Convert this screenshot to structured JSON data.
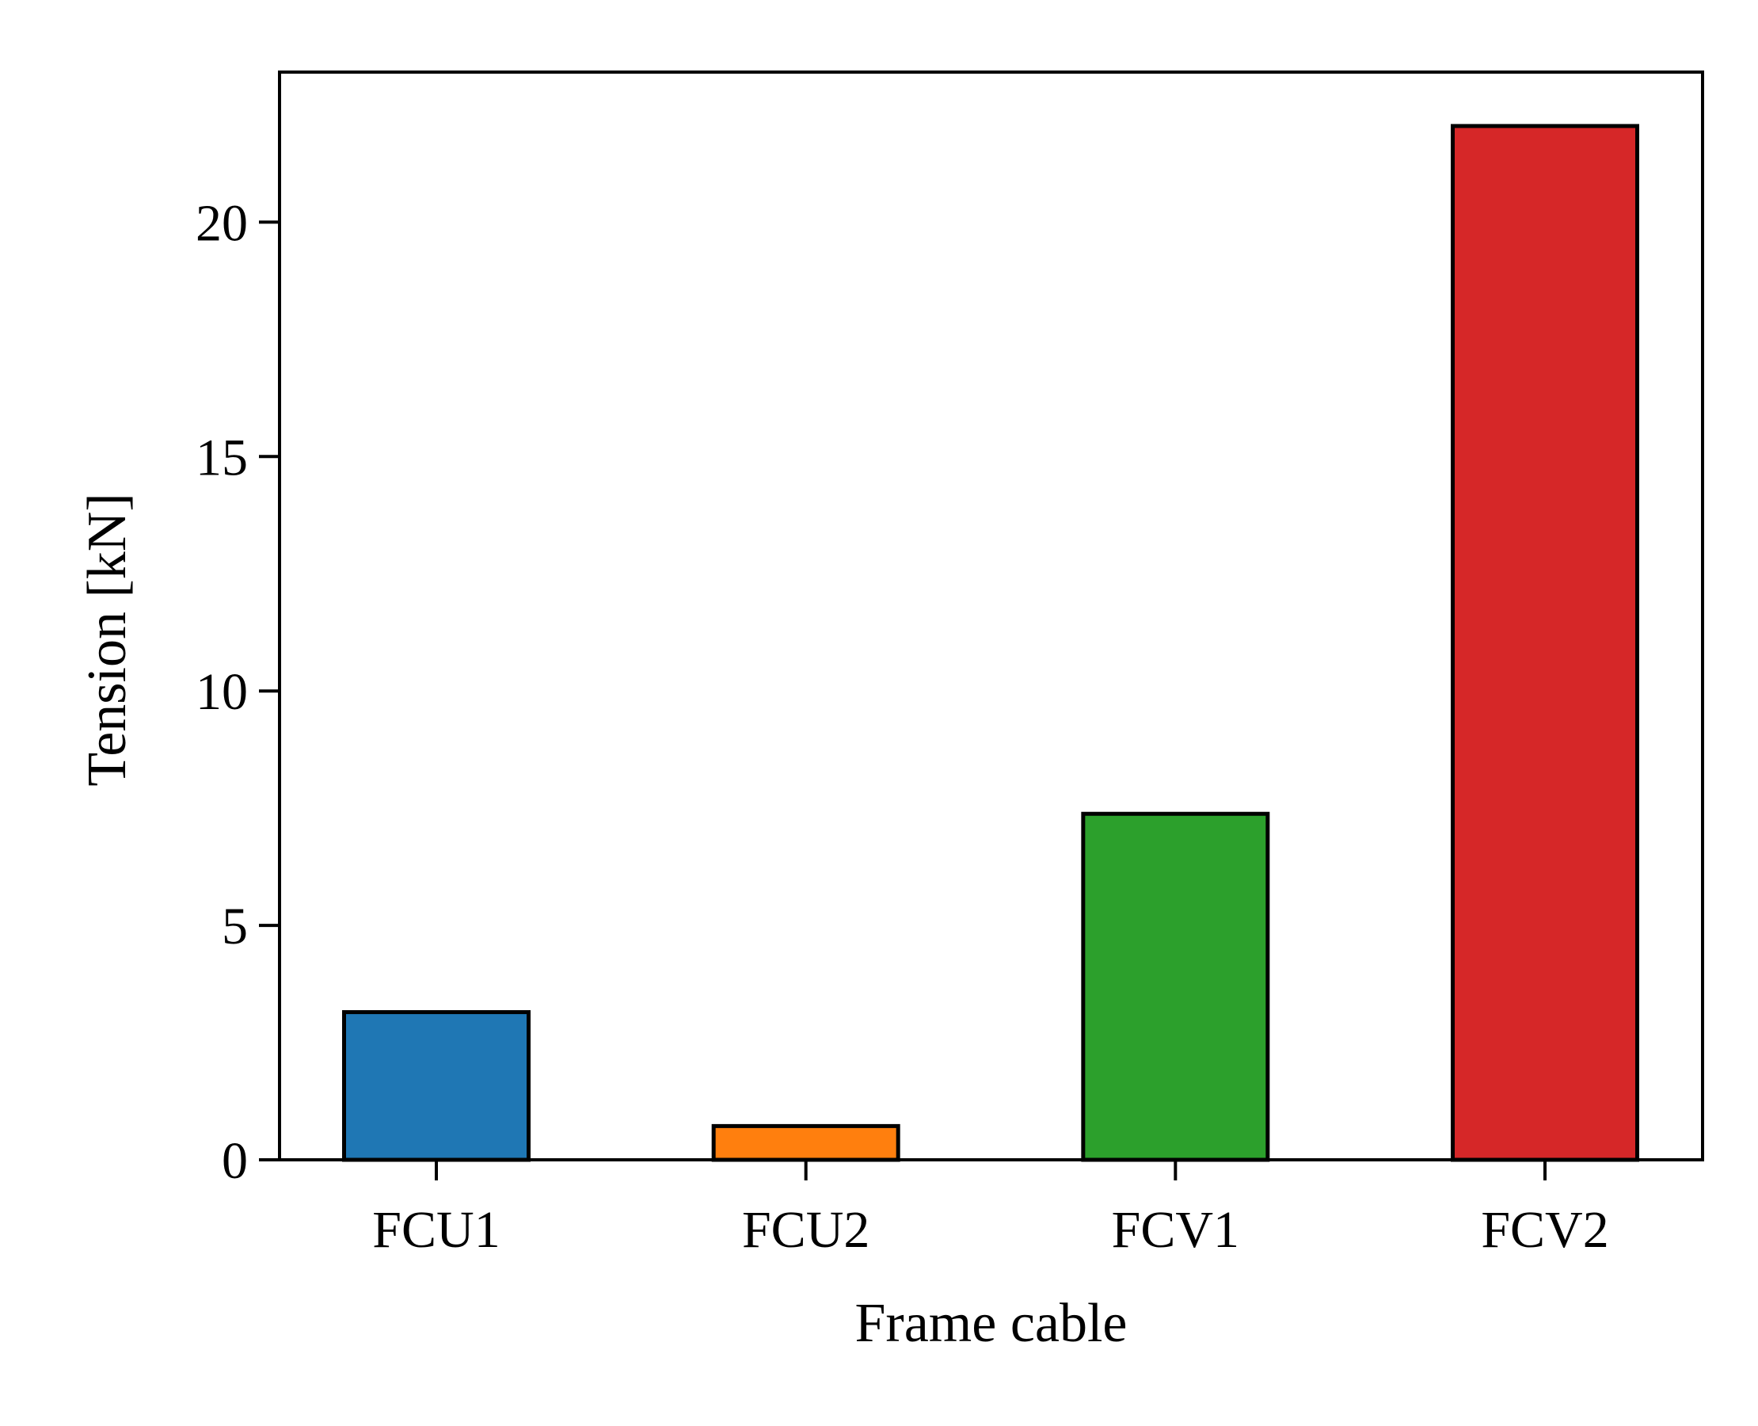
{
  "chart_data": {
    "type": "bar",
    "categories": [
      "FCU1",
      "FCU2",
      "FCV1",
      "FCV2"
    ],
    "values": [
      3.15,
      0.72,
      7.38,
      22.05
    ],
    "colors": [
      "#1f77b4",
      "#ff7f0e",
      "#2ca02c",
      "#d62728"
    ],
    "title": "",
    "xlabel": "Frame cable",
    "ylabel": "Tension [kN]",
    "ylim": [
      0,
      23.2
    ],
    "yticks": [
      0,
      5,
      10,
      15,
      20
    ],
    "grid": false,
    "legend": "none"
  }
}
